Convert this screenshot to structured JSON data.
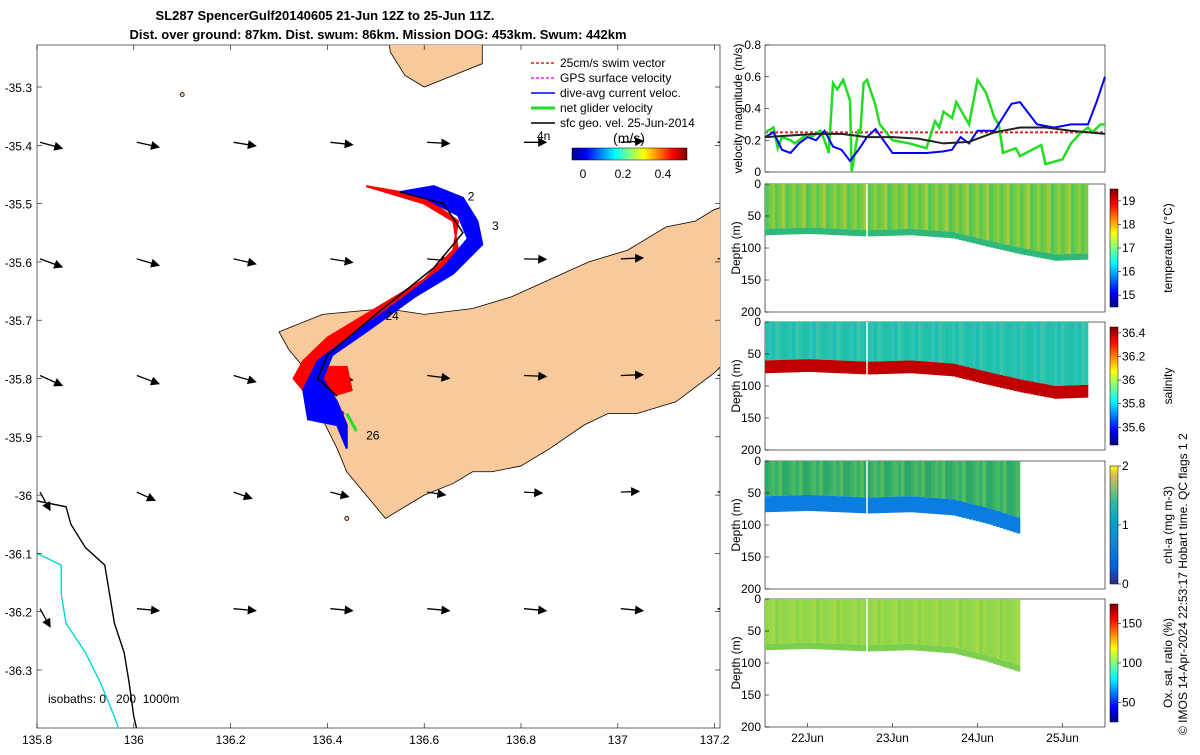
{
  "header": {
    "line1": "SL287 SpencerGulf20140605 21-Jun 12Z to 25-Jun 11Z.",
    "line2": "Dist. over ground: 87km. Dist. swum: 86km. Mission DOG: 453km. Swum: 442km"
  },
  "colors": {
    "land": "#f8c99a",
    "track_red": "#ff0000",
    "track_blue": "#0000ff",
    "glider_green": "#22dd22",
    "iso200": "#000000",
    "iso1000": "#00d8d8",
    "swim_red": "#dd2222",
    "gps_magenta": "#ee22ee",
    "gps_black": "#222222"
  },
  "map": {
    "x_ticks": [
      "135.8",
      "136",
      "136.2",
      "136.4",
      "136.6",
      "136.8",
      "137",
      "137.2"
    ],
    "y_ticks": [
      "-35.3",
      "-35.4",
      "-35.5",
      "-35.6",
      "-35.7",
      "-35.8",
      "-35.9",
      "-36",
      "-36.1",
      "-36.2",
      "-36.3"
    ],
    "isobath_label": "isobaths: 0   200  1000m",
    "day_labels": [
      {
        "text": "2",
        "lon": 136.69,
        "lat": -35.495
      },
      {
        "text": "3",
        "lon": 136.74,
        "lat": -35.545
      },
      {
        "text": "24",
        "lon": 136.52,
        "lat": -35.7
      },
      {
        "text": "26",
        "lon": 136.48,
        "lat": -35.905
      }
    ],
    "legend": {
      "items": [
        {
          "label": "25cm/s swim vector",
          "color": "#dd2222",
          "style": "dashed"
        },
        {
          "label": "GPS surface velocity",
          "color": "#ee22ee",
          "style": "dashed"
        },
        {
          "label": "dive-avg current veloc.",
          "color": "#0000ff",
          "style": "solid"
        },
        {
          "label": "net glider velocity",
          "color": "#22dd22",
          "style": "thick"
        },
        {
          "label": "sfc geo. vel. 25-Jun-2014",
          "color": "#000000",
          "style": "solid"
        }
      ],
      "extra_label": "4n"
    },
    "colorbar": {
      "unit": "(m/s)",
      "ticks": [
        "0",
        "0.2",
        "0.4"
      ]
    }
  },
  "chart_data": [
    {
      "type": "line",
      "ylabel": "velocity magnitude (m/s)",
      "ylim": [
        0,
        0.8
      ],
      "y_ticks": [
        "0",
        "0.2",
        "0.4",
        "0.6",
        "0.8"
      ],
      "xlim": [
        21.5,
        25.5
      ],
      "series": [
        {
          "color": "#dd2222",
          "style": "dashed",
          "x": [
            21.5,
            25.5
          ],
          "y": [
            0.25,
            0.25
          ]
        },
        {
          "color": "#22dd22",
          "x": [
            21.5,
            21.6,
            21.65,
            21.7,
            21.8,
            21.85,
            22.0,
            22.05,
            22.15,
            22.2,
            22.25,
            22.3,
            22.35,
            22.42,
            22.5,
            22.52,
            22.6,
            22.62,
            22.66,
            22.7,
            22.8,
            22.85,
            23.0,
            23.2,
            23.4,
            23.5,
            23.55,
            23.6,
            23.7,
            23.75,
            23.9,
            24.0,
            24.1,
            24.2,
            24.25,
            24.3,
            24.45,
            24.5,
            24.75,
            24.8,
            25.0,
            25.1,
            25.2,
            25.3,
            25.35,
            25.45,
            25.5
          ],
          "y": [
            0.25,
            0.28,
            0.15,
            0.22,
            0.2,
            0.18,
            0.24,
            0.22,
            0.26,
            0.2,
            0.12,
            0.56,
            0.52,
            0.58,
            0.45,
            0.0,
            0.27,
            0.24,
            0.56,
            0.58,
            0.42,
            0.3,
            0.2,
            0.18,
            0.15,
            0.32,
            0.28,
            0.38,
            0.34,
            0.44,
            0.3,
            0.58,
            0.5,
            0.34,
            0.3,
            0.12,
            0.15,
            0.1,
            0.17,
            0.05,
            0.08,
            0.18,
            0.24,
            0.28,
            0.25,
            0.3,
            0.3
          ]
        },
        {
          "color": "#0000ff",
          "x": [
            21.5,
            21.6,
            21.7,
            21.8,
            21.9,
            22.0,
            22.1,
            22.2,
            22.3,
            22.4,
            22.5,
            22.6,
            22.7,
            22.8,
            23.0,
            23.2,
            23.4,
            23.6,
            23.7,
            23.8,
            23.9,
            24.0,
            24.2,
            24.4,
            24.5,
            24.7,
            24.9,
            25.1,
            25.3,
            25.4,
            25.5
          ],
          "y": [
            0.22,
            0.25,
            0.14,
            0.12,
            0.18,
            0.22,
            0.2,
            0.26,
            0.16,
            0.14,
            0.07,
            0.14,
            0.22,
            0.27,
            0.12,
            0.12,
            0.12,
            0.13,
            0.14,
            0.22,
            0.18,
            0.26,
            0.26,
            0.43,
            0.44,
            0.3,
            0.28,
            0.3,
            0.3,
            0.44,
            0.6
          ]
        },
        {
          "color": "#222222",
          "x": [
            21.5,
            21.8,
            22.1,
            22.4,
            22.7,
            23.0,
            23.3,
            23.6,
            23.9,
            24.2,
            24.5,
            24.8,
            25.1,
            25.5
          ],
          "y": [
            0.22,
            0.23,
            0.24,
            0.24,
            0.22,
            0.22,
            0.21,
            0.18,
            0.19,
            0.25,
            0.28,
            0.28,
            0.26,
            0.24
          ]
        }
      ]
    },
    {
      "type": "heatmap",
      "variable": "temperature",
      "ylabel": "Depth (m)",
      "ylim": [
        0,
        200
      ],
      "y_ticks": [
        "0",
        "50",
        "100",
        "150",
        "200"
      ],
      "colorbar_label": "temperature (°C)",
      "clim": [
        14.5,
        19.5
      ],
      "colorbar_ticks": [
        "15",
        "16",
        "17",
        "18",
        "19"
      ],
      "bottom_depth_profile": {
        "x": [
          21.5,
          22.0,
          22.7,
          23.2,
          23.7,
          24.1,
          24.5,
          24.9,
          25.3
        ],
        "depth": [
          80,
          78,
          82,
          80,
          85,
          98,
          110,
          120,
          118
        ]
      }
    },
    {
      "type": "heatmap",
      "variable": "salinity",
      "ylabel": "Depth (m)",
      "ylim": [
        0,
        200
      ],
      "y_ticks": [
        "0",
        "50",
        "100",
        "150",
        "200"
      ],
      "colorbar_label": "salinity",
      "clim": [
        35.45,
        36.45
      ],
      "colorbar_ticks": [
        "35.6",
        "35.8",
        "36",
        "36.2",
        "36.4"
      ],
      "bottom_depth_profile": {
        "x": [
          21.5,
          22.0,
          22.7,
          23.2,
          23.7,
          24.1,
          24.5,
          24.9,
          25.3
        ],
        "depth": [
          80,
          78,
          82,
          80,
          85,
          98,
          110,
          120,
          118
        ]
      }
    },
    {
      "type": "heatmap",
      "variable": "chl-a",
      "ylabel": "Depth (m)",
      "ylim": [
        0,
        200
      ],
      "y_ticks": [
        "0",
        "50",
        "100",
        "150",
        "200"
      ],
      "colorbar_label": "chl-a (mg m-3)",
      "clim": [
        0,
        2
      ],
      "colorbar_ticks": [
        "0",
        "1",
        "2"
      ],
      "bottom_depth_profile": {
        "x": [
          21.5,
          22.0,
          22.7,
          23.2,
          23.7,
          24.1,
          24.5
        ],
        "depth": [
          80,
          78,
          82,
          80,
          85,
          98,
          115
        ]
      }
    },
    {
      "type": "heatmap",
      "variable": "oxygen",
      "ylabel": "Depth (m)",
      "ylim": [
        0,
        200
      ],
      "y_ticks": [
        "0",
        "50",
        "100",
        "150",
        "200"
      ],
      "colorbar_label": "Ox. sat. ratio (%)",
      "clim": [
        25,
        175
      ],
      "colorbar_ticks": [
        "50",
        "100",
        "150"
      ],
      "x_ticks": [
        "22Jun",
        "23Jun",
        "24Jun",
        "25Jun"
      ],
      "bottom_depth_profile": {
        "x": [
          21.5,
          22.0,
          22.7,
          23.2,
          23.7,
          24.1,
          24.5
        ],
        "depth": [
          80,
          78,
          82,
          80,
          85,
          98,
          115
        ]
      }
    }
  ],
  "side_text": "© IMOS 14-Apr-2024 22:53:17 Hobart time. QC flags 1  2"
}
